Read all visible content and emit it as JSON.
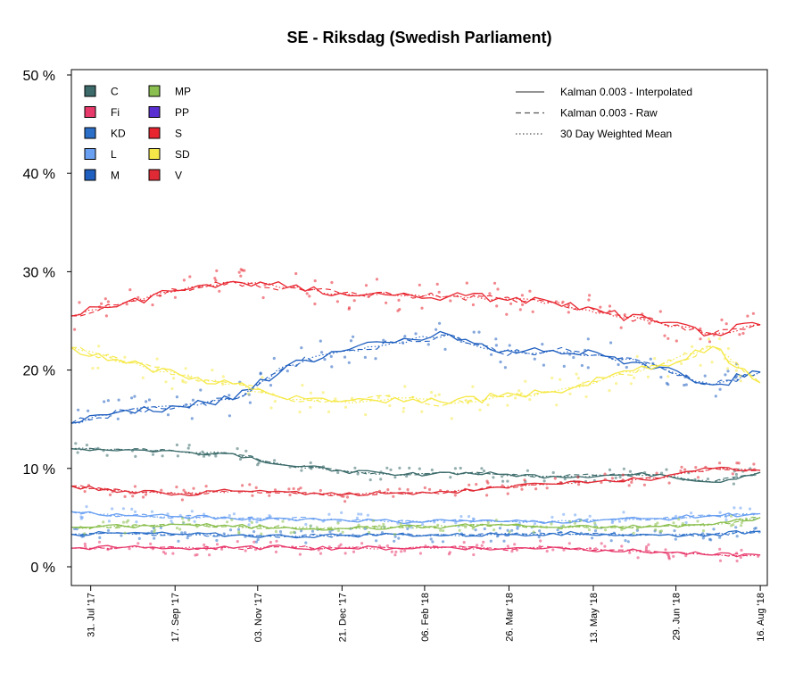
{
  "chart_data": {
    "type": "line",
    "title": "SE - Riksdag (Swedish Parliament)",
    "xlabel": "",
    "ylabel": "",
    "ylim": [
      0,
      50
    ],
    "y_ticks": [
      "0 %",
      "10 %",
      "20 %",
      "30 %",
      "40 %",
      "50 %"
    ],
    "y_tick_values": [
      0,
      10,
      20,
      30,
      40,
      50
    ],
    "x_range": [
      "2017-07-20",
      "2018-08-20"
    ],
    "x_ticks": [
      {
        "label": "31. Jul '17",
        "date": "2017-07-31"
      },
      {
        "label": "17. Sep '17",
        "date": "2017-09-17"
      },
      {
        "label": "03. Nov '17",
        "date": "2017-11-03"
      },
      {
        "label": "21. Dec '17",
        "date": "2017-12-21"
      },
      {
        "label": "06. Feb '18",
        "date": "2018-02-06"
      },
      {
        "label": "26. Mar '18",
        "date": "2018-03-26"
      },
      {
        "label": "13. May '18",
        "date": "2018-05-13"
      },
      {
        "label": "29. Jun '18",
        "date": "2018-06-29"
      },
      {
        "label": "16. Aug '18",
        "date": "2018-08-16"
      }
    ],
    "legend_position": "top-left",
    "grid": false,
    "method_legend": [
      {
        "label": "Kalman 0.003 - Interpolated",
        "style": "solid"
      },
      {
        "label": "Kalman 0.003 - Raw",
        "style": "dashed"
      },
      {
        "label": "30 Day Weighted Mean",
        "style": "dotted"
      }
    ],
    "series": [
      {
        "name": "C",
        "color": "#3d6b6b",
        "points": [
          [
            "2017-07-20",
            12.0
          ],
          [
            "2017-08-20",
            11.9
          ],
          [
            "2017-09-20",
            11.7
          ],
          [
            "2017-10-20",
            11.5
          ],
          [
            "2017-11-20",
            10.3
          ],
          [
            "2017-12-20",
            9.8
          ],
          [
            "2018-01-20",
            9.3
          ],
          [
            "2018-02-20",
            9.6
          ],
          [
            "2018-03-20",
            9.4
          ],
          [
            "2018-04-20",
            9.2
          ],
          [
            "2018-05-20",
            9.3
          ],
          [
            "2018-06-20",
            9.4
          ],
          [
            "2018-07-20",
            8.6
          ],
          [
            "2018-08-16",
            9.6
          ]
        ]
      },
      {
        "name": "Fi",
        "color": "#e8396b",
        "points": [
          [
            "2017-07-20",
            1.9
          ],
          [
            "2017-08-20",
            2.0
          ],
          [
            "2017-09-20",
            1.9
          ],
          [
            "2017-10-20",
            1.9
          ],
          [
            "2017-11-20",
            2.0
          ],
          [
            "2017-12-20",
            1.9
          ],
          [
            "2018-01-20",
            1.9
          ],
          [
            "2018-02-20",
            2.0
          ],
          [
            "2018-03-20",
            1.8
          ],
          [
            "2018-04-20",
            2.0
          ],
          [
            "2018-05-20",
            1.7
          ],
          [
            "2018-06-20",
            1.5
          ],
          [
            "2018-07-20",
            1.2
          ],
          [
            "2018-08-16",
            1.2
          ]
        ]
      },
      {
        "name": "KD",
        "color": "#2c6fc9",
        "points": [
          [
            "2017-07-20",
            3.3
          ],
          [
            "2017-08-20",
            3.4
          ],
          [
            "2017-09-20",
            3.3
          ],
          [
            "2017-10-20",
            3.2
          ],
          [
            "2017-11-20",
            3.1
          ],
          [
            "2017-12-20",
            3.2
          ],
          [
            "2018-01-20",
            3.3
          ],
          [
            "2018-02-20",
            3.2
          ],
          [
            "2018-03-20",
            3.3
          ],
          [
            "2018-04-20",
            3.4
          ],
          [
            "2018-05-20",
            3.3
          ],
          [
            "2018-06-20",
            3.2
          ],
          [
            "2018-07-20",
            3.3
          ],
          [
            "2018-08-16",
            3.6
          ]
        ]
      },
      {
        "name": "L",
        "color": "#6aa0f2",
        "points": [
          [
            "2017-07-20",
            5.6
          ],
          [
            "2017-08-20",
            5.2
          ],
          [
            "2017-09-20",
            5.1
          ],
          [
            "2017-10-20",
            4.9
          ],
          [
            "2017-11-20",
            4.9
          ],
          [
            "2017-12-20",
            4.8
          ],
          [
            "2018-01-20",
            4.6
          ],
          [
            "2018-02-20",
            4.7
          ],
          [
            "2018-03-20",
            4.6
          ],
          [
            "2018-04-20",
            4.6
          ],
          [
            "2018-05-20",
            4.8
          ],
          [
            "2018-06-20",
            4.9
          ],
          [
            "2018-07-20",
            5.2
          ],
          [
            "2018-08-16",
            5.4
          ]
        ]
      },
      {
        "name": "M",
        "color": "#1f5fbf",
        "points": [
          [
            "2017-07-20",
            14.6
          ],
          [
            "2017-08-20",
            15.9
          ],
          [
            "2017-09-20",
            16.3
          ],
          [
            "2017-10-20",
            17.0
          ],
          [
            "2017-11-20",
            20.5
          ],
          [
            "2017-12-20",
            21.9
          ],
          [
            "2018-01-20",
            22.8
          ],
          [
            "2018-02-20",
            23.6
          ],
          [
            "2018-03-20",
            21.8
          ],
          [
            "2018-04-20",
            22.0
          ],
          [
            "2018-05-20",
            21.4
          ],
          [
            "2018-06-20",
            20.3
          ],
          [
            "2018-07-20",
            18.5
          ],
          [
            "2018-08-16",
            19.8
          ]
        ]
      },
      {
        "name": "MP",
        "color": "#8bbf4f",
        "points": [
          [
            "2017-07-20",
            4.0
          ],
          [
            "2017-08-20",
            4.1
          ],
          [
            "2017-09-20",
            4.3
          ],
          [
            "2017-10-20",
            4.1
          ],
          [
            "2017-11-20",
            4.0
          ],
          [
            "2017-12-20",
            3.9
          ],
          [
            "2018-01-20",
            4.0
          ],
          [
            "2018-02-20",
            4.1
          ],
          [
            "2018-03-20",
            4.3
          ],
          [
            "2018-04-20",
            4.0
          ],
          [
            "2018-05-20",
            4.0
          ],
          [
            "2018-06-20",
            4.1
          ],
          [
            "2018-07-20",
            4.3
          ],
          [
            "2018-08-16",
            5.0
          ]
        ]
      },
      {
        "name": "PP",
        "color": "#5a2fd1",
        "points": []
      },
      {
        "name": "S",
        "color": "#e8252f",
        "points": [
          [
            "2017-07-20",
            25.5
          ],
          [
            "2017-08-20",
            26.9
          ],
          [
            "2017-09-20",
            28.1
          ],
          [
            "2017-10-20",
            29.0
          ],
          [
            "2017-11-20",
            28.4
          ],
          [
            "2017-12-20",
            27.8
          ],
          [
            "2018-01-20",
            27.6
          ],
          [
            "2018-02-20",
            27.5
          ],
          [
            "2018-03-20",
            27.3
          ],
          [
            "2018-04-20",
            26.9
          ],
          [
            "2018-05-20",
            25.8
          ],
          [
            "2018-06-20",
            24.8
          ],
          [
            "2018-07-20",
            23.7
          ],
          [
            "2018-08-16",
            24.6
          ]
        ]
      },
      {
        "name": "SD",
        "color": "#f5e94a",
        "points": [
          [
            "2017-07-20",
            22.3
          ],
          [
            "2017-08-20",
            20.7
          ],
          [
            "2017-09-20",
            19.5
          ],
          [
            "2017-10-20",
            18.6
          ],
          [
            "2017-11-20",
            17.0
          ],
          [
            "2017-12-20",
            16.8
          ],
          [
            "2018-01-20",
            17.2
          ],
          [
            "2018-02-20",
            16.6
          ],
          [
            "2018-03-20",
            17.3
          ],
          [
            "2018-04-20",
            17.8
          ],
          [
            "2018-05-20",
            19.2
          ],
          [
            "2018-06-20",
            20.5
          ],
          [
            "2018-07-20",
            22.4
          ],
          [
            "2018-08-16",
            18.7
          ]
        ]
      },
      {
        "name": "V",
        "color": "#e02a35",
        "points": [
          [
            "2017-07-20",
            8.2
          ],
          [
            "2017-08-20",
            7.7
          ],
          [
            "2017-09-20",
            7.4
          ],
          [
            "2017-10-20",
            7.7
          ],
          [
            "2017-11-20",
            7.6
          ],
          [
            "2017-12-20",
            7.3
          ],
          [
            "2018-01-20",
            7.5
          ],
          [
            "2018-02-20",
            7.6
          ],
          [
            "2018-03-20",
            8.1
          ],
          [
            "2018-04-20",
            8.4
          ],
          [
            "2018-05-20",
            8.8
          ],
          [
            "2018-06-20",
            9.0
          ],
          [
            "2018-07-20",
            10.0
          ],
          [
            "2018-08-16",
            9.8
          ]
        ]
      }
    ]
  }
}
